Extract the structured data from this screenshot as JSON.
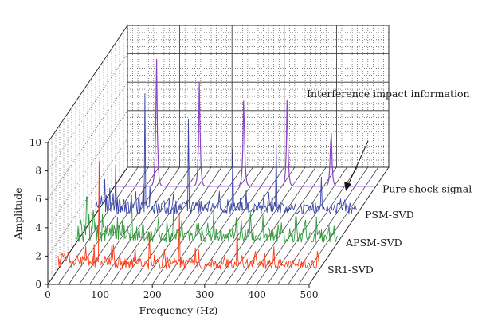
{
  "chart_data": {
    "type": "line",
    "projection": "3d-waterfall",
    "xlabel": "Frequency (Hz)",
    "ylabel": "Amplitude",
    "x_ticks": [
      0,
      100,
      200,
      300,
      400,
      500
    ],
    "y_ticks": [
      0,
      2,
      4,
      6,
      8,
      10
    ],
    "xlim": [
      0,
      500
    ],
    "ylim": [
      0,
      10
    ],
    "grid": true,
    "annotation": "Interference impact information",
    "series": [
      {
        "name": "SR1-SVD",
        "color": "#ff3b16",
        "noise_level": 0.7,
        "peaks": [
          {
            "x": 20,
            "y": 1.2
          },
          {
            "x": 78,
            "y": 7.6
          },
          {
            "x": 175,
            "y": 2.6
          },
          {
            "x": 232,
            "y": 4.0
          },
          {
            "x": 263,
            "y": 1.5
          },
          {
            "x": 343,
            "y": 3.6
          },
          {
            "x": 413,
            "y": 1.6
          }
        ]
      },
      {
        "name": "APSM-SVD",
        "color": "#2e9a3c",
        "noise_level": 1.1,
        "peaks": [
          {
            "x": 20,
            "y": 3.2
          },
          {
            "x": 50,
            "y": 2.0
          },
          {
            "x": 106,
            "y": 3.3
          },
          {
            "x": 185,
            "y": 2.4
          },
          {
            "x": 262,
            "y": 2.2
          },
          {
            "x": 333,
            "y": 2.1
          },
          {
            "x": 420,
            "y": 1.8
          }
        ]
      },
      {
        "name": "PSM-SVD",
        "color": "#3b46a8",
        "noise_level": 0.9,
        "peaks": [
          {
            "x": 38,
            "y": 3.5
          },
          {
            "x": 95,
            "y": 8.5
          },
          {
            "x": 178,
            "y": 6.7
          },
          {
            "x": 263,
            "y": 4.6
          },
          {
            "x": 345,
            "y": 5.0
          },
          {
            "x": 432,
            "y": 2.6
          }
        ]
      },
      {
        "name": "Pure shock signal",
        "color": "#8d44c6",
        "noise_level": 0.0,
        "peaks": [
          {
            "x": 83,
            "y": 10.0
          },
          {
            "x": 165,
            "y": 8.2
          },
          {
            "x": 250,
            "y": 7.5
          },
          {
            "x": 333,
            "y": 6.8
          },
          {
            "x": 417,
            "y": 5.2
          }
        ]
      }
    ]
  },
  "colors": {
    "axis": "#1a1a1a",
    "grid": "#333333",
    "arrow": "#111111"
  }
}
